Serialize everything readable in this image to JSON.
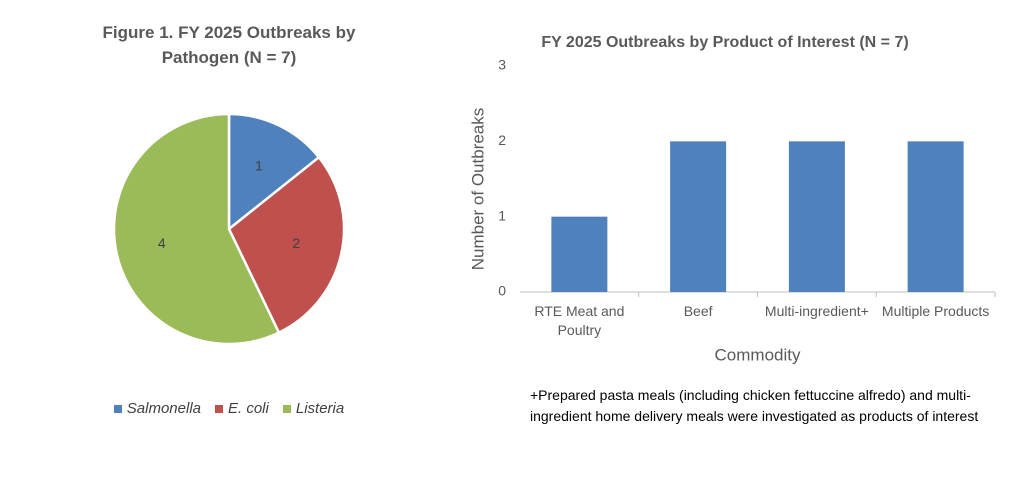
{
  "chart_data": [
    {
      "type": "pie",
      "title": "Figure 1. FY 2025 Outbreaks by Pathogen (N = 7)",
      "categories": [
        "Salmonella",
        "E. coli",
        "Listeria"
      ],
      "values": [
        1,
        2,
        4
      ],
      "colors": [
        "#4f81bd",
        "#c0504d",
        "#9bbb59"
      ],
      "legend": "bottom"
    },
    {
      "type": "bar",
      "title": "FY 2025 Outbreaks by Product of Interest (N = 7)",
      "categories": [
        "RTE Meat and Poultry",
        "Beef",
        "Multi-ingredient+",
        "Multiple Products"
      ],
      "values": [
        1,
        2,
        2,
        2
      ],
      "color": "#4f81bd",
      "xlabel": "Commodity",
      "ylabel": "Number of Outbreaks",
      "ylim": [
        0,
        3
      ],
      "yticks": [
        0,
        1,
        2,
        3
      ],
      "grid": false,
      "note": "+Prepared pasta meals (including chicken fettuccine alfredo) and multi-ingredient home delivery meals were investigated as products of interest"
    }
  ]
}
